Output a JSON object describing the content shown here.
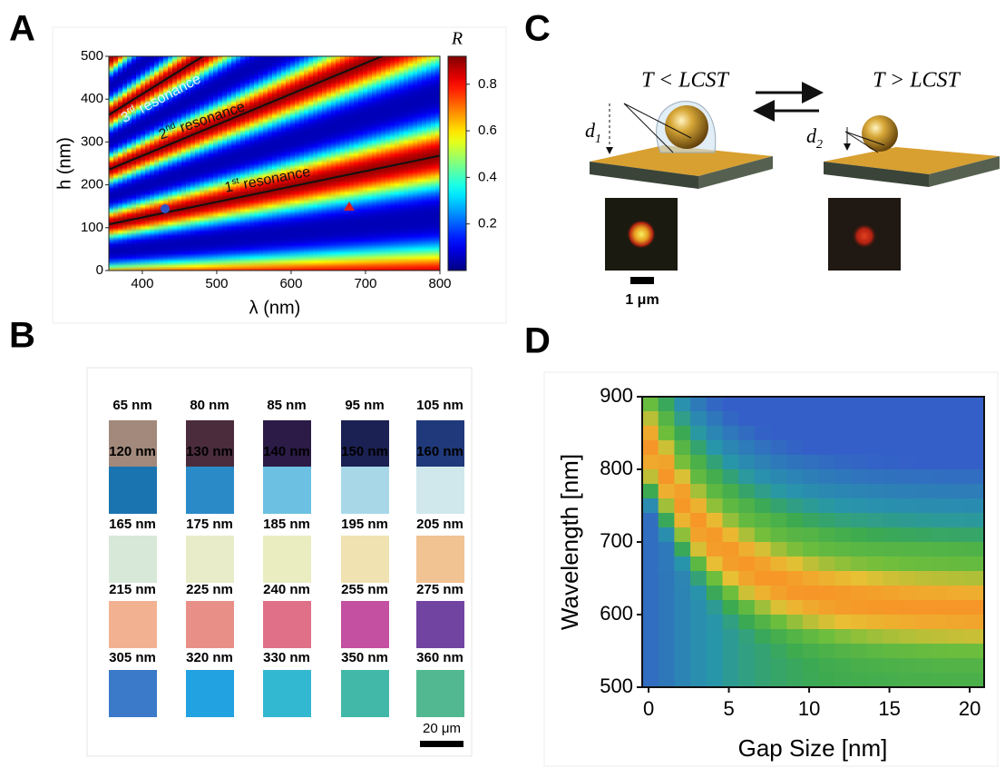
{
  "panel_labels": [
    "A",
    "B",
    "C",
    "D"
  ],
  "panel_a": {
    "colorbar_label": "R",
    "x_label": "λ (nm)",
    "y_label": "h (nm)",
    "xlim": [
      355,
      800
    ],
    "xticks": [
      400,
      500,
      600,
      700,
      800
    ],
    "ylim": [
      0,
      500
    ],
    "yticks": [
      0,
      100,
      200,
      300,
      400,
      500
    ],
    "clim": [
      0,
      0.92
    ],
    "cticks": [
      0.2,
      0.4,
      0.6,
      0.8
    ],
    "annotations": [
      {
        "number": "3",
        "suffix": "rd",
        "text": " resonance"
      },
      {
        "number": "2",
        "suffix": "nd",
        "text": " resonance"
      },
      {
        "number": "1",
        "suffix": "st",
        "text": " resonance"
      }
    ]
  },
  "panel_b": {
    "swatches": [
      [
        {
          "label": "65 nm",
          "color": "#a2897c"
        },
        {
          "label": "80 nm",
          "color": "#4a2c3c"
        },
        {
          "label": "85 nm",
          "color": "#2b1b46"
        },
        {
          "label": "95 nm",
          "color": "#1b2152"
        },
        {
          "label": "105 nm",
          "color": "#20397a"
        }
      ],
      [
        {
          "label": "120 nm",
          "color": "#1a74b0"
        },
        {
          "label": "130 nm",
          "color": "#2a8ac8"
        },
        {
          "label": "140 nm",
          "color": "#6cc0e2"
        },
        {
          "label": "150 nm",
          "color": "#a8d8e8"
        },
        {
          "label": "160 nm",
          "color": "#d0e8ec"
        }
      ],
      [
        {
          "label": "165 nm",
          "color": "#d8e8d8"
        },
        {
          "label": "175 nm",
          "color": "#e8ecc8"
        },
        {
          "label": "185 nm",
          "color": "#e9edc0"
        },
        {
          "label": "195 nm",
          "color": "#f1e2b2"
        },
        {
          "label": "205 nm",
          "color": "#f1c292"
        }
      ],
      [
        {
          "label": "215 nm",
          "color": "#f2b292"
        },
        {
          "label": "225 nm",
          "color": "#e89088"
        },
        {
          "label": "240 nm",
          "color": "#e07088"
        },
        {
          "label": "255 nm",
          "color": "#c450a2"
        },
        {
          "label": "275 nm",
          "color": "#7244a2"
        }
      ],
      [
        {
          "label": "305 nm",
          "color": "#3a7ac8"
        },
        {
          "label": "320 nm",
          "color": "#22a2e0"
        },
        {
          "label": "330 nm",
          "color": "#32b8d0"
        },
        {
          "label": "350 nm",
          "color": "#42b8a8"
        },
        {
          "label": "360 nm",
          "color": "#52b892"
        }
      ]
    ],
    "scale_bar": "20 μm"
  },
  "panel_c": {
    "left_state": "T < LCST",
    "right_state": "T > LCST",
    "d1": {
      "base": "d",
      "sub": "1"
    },
    "d2": {
      "base": "d",
      "sub": "2"
    },
    "scale_bar": "1 μm"
  },
  "panel_d": {
    "x_label": "Gap Size [nm]",
    "y_label": "Wavelength [nm]",
    "xlim": [
      -0.4,
      20.9
    ],
    "xticks": [
      0,
      5,
      10,
      15,
      20
    ],
    "ylim": [
      500,
      900
    ],
    "yticks": [
      500,
      600,
      700,
      800,
      900
    ]
  }
}
